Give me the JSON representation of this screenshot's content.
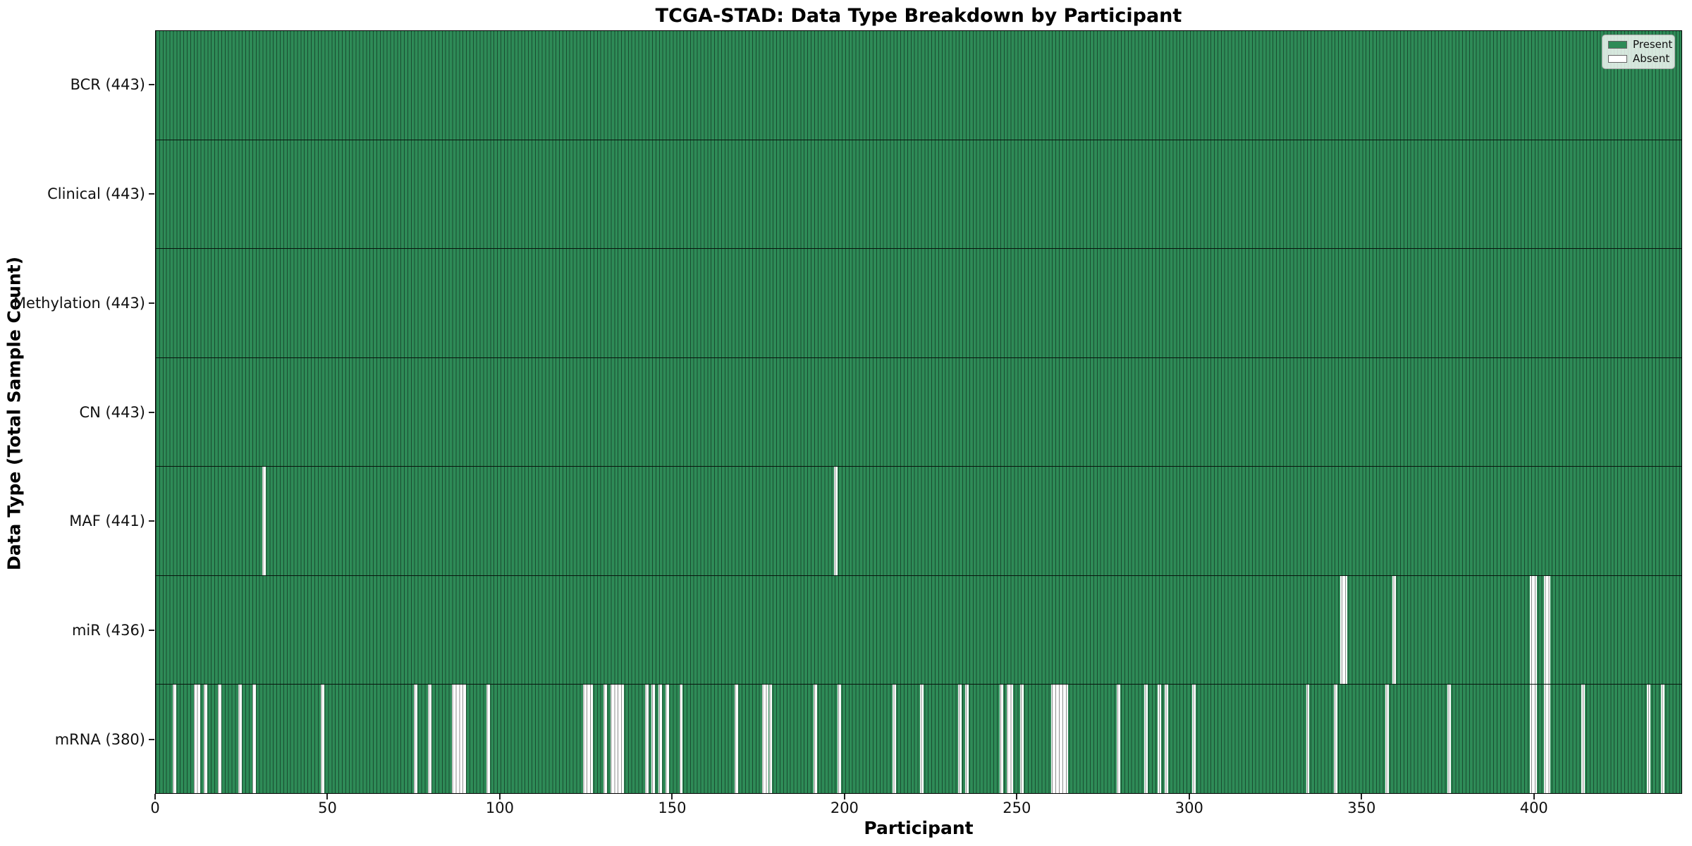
{
  "page": {
    "background": "#ffffff"
  },
  "chart_data": {
    "type": "heatmap",
    "title": "TCGA-STAD: Data Type Breakdown by Participant",
    "xlabel": "Participant",
    "ylabel": "Data Type (Total Sample Count)",
    "n_participants": 443,
    "xlim": [
      0,
      443
    ],
    "x_ticks": [
      0,
      50,
      100,
      150,
      200,
      250,
      300,
      350,
      400
    ],
    "grid": false,
    "colors": {
      "present": "#2e8b57",
      "absent": "#ffffff",
      "cell_edge": "rgba(0,0,0,0.45)",
      "row_divider": "#1a1a1a",
      "axis_frame": "#000000"
    },
    "legend": {
      "position": "upper right",
      "entries": [
        {
          "label": "Present",
          "color": "#2e8b57"
        },
        {
          "label": "Absent",
          "color": "#ffffff"
        }
      ]
    },
    "rows": [
      {
        "name": "BCR",
        "label": "BCR (443)",
        "present_count": 443,
        "absent_participants": []
      },
      {
        "name": "Clinical",
        "label": "Clinical (443)",
        "present_count": 443,
        "absent_participants": []
      },
      {
        "name": "Methylation",
        "label": "Methylation (443)",
        "present_count": 443,
        "absent_participants": []
      },
      {
        "name": "CN",
        "label": "CN (443)",
        "present_count": 443,
        "absent_participants": []
      },
      {
        "name": "MAF",
        "label": "MAF (441)",
        "present_count": 441,
        "absent_participants": [
          31,
          197
        ]
      },
      {
        "name": "miR",
        "label": "miR (436)",
        "present_count": 436,
        "absent_participants": [
          344,
          345,
          359,
          399,
          400,
          403,
          404
        ]
      },
      {
        "name": "mRNA",
        "label": "mRNA (380)",
        "present_count": 380,
        "absent_participants": [
          5,
          11,
          12,
          14,
          18,
          24,
          28,
          48,
          75,
          79,
          86,
          87,
          88,
          89,
          96,
          124,
          125,
          126,
          130,
          132,
          133,
          134,
          135,
          142,
          144,
          146,
          148,
          152,
          168,
          176,
          177,
          178,
          191,
          198,
          214,
          222,
          233,
          235,
          245,
          247,
          248,
          251,
          260,
          261,
          262,
          263,
          264,
          279,
          287,
          291,
          293,
          301,
          334,
          342,
          357,
          375,
          399,
          400,
          403,
          404,
          414,
          433,
          437
        ]
      }
    ]
  }
}
